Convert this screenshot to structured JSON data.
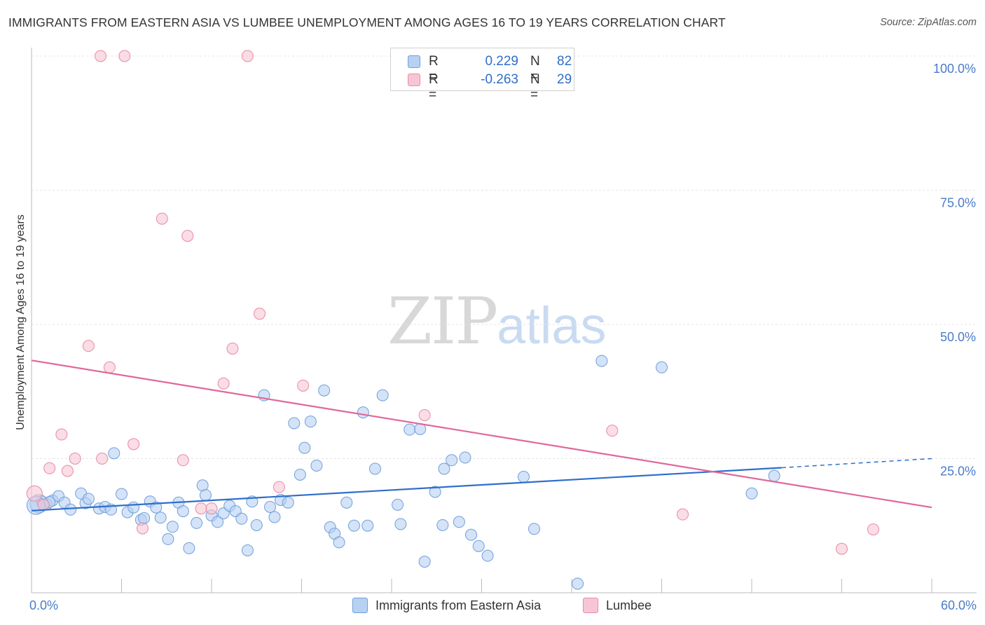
{
  "header": {
    "title": "IMMIGRANTS FROM EASTERN ASIA VS LUMBEE UNEMPLOYMENT AMONG AGES 16 TO 19 YEARS CORRELATION CHART",
    "source": "Source: ZipAtlas.com"
  },
  "watermark": {
    "zip": "ZIP",
    "atlas": "atlas"
  },
  "legend_top": [
    {
      "r_label": "R =",
      "r_value": "0.229",
      "n_label": "N =",
      "n_value": "82"
    },
    {
      "r_label": "R =",
      "r_value": "-0.263",
      "n_label": "N =",
      "n_value": "29"
    }
  ],
  "legend_bottom": [
    {
      "label": "Immigrants from Eastern Asia"
    },
    {
      "label": "Lumbee"
    }
  ],
  "chart_data": {
    "type": "scatter",
    "title": "IMMIGRANTS FROM EASTERN ASIA VS LUMBEE UNEMPLOYMENT AMONG AGES 16 TO 19 YEARS CORRELATION CHART",
    "xlabel": "",
    "ylabel": "Unemployment Among Ages 16 to 19 years",
    "xlim": [
      0,
      60
    ],
    "ylim": [
      0,
      100
    ],
    "x_tick_labels": [
      "0.0%",
      "60.0%"
    ],
    "y_tick_labels": [
      "100.0%",
      "75.0%",
      "50.0%",
      "25.0%"
    ],
    "y_ticks": [
      100,
      75,
      50,
      25
    ],
    "grid": true,
    "legend_placement": "top-center",
    "colors": {
      "blue_fill": "#b7d1f2",
      "blue_stroke": "#6f9fdc",
      "blue_line": "#2f6fca",
      "pink_fill": "#f7c6d4",
      "pink_stroke": "#e88aa6",
      "pink_line": "#e0679a",
      "axis_text": "#4a7cc8"
    },
    "series": [
      {
        "name": "Immigrants from Eastern Asia",
        "r": 0.229,
        "n": 82,
        "trend": {
          "x": [
            0,
            50
          ],
          "y": [
            15.3,
            23.3
          ],
          "dashed_to": [
            60,
            25.0
          ]
        },
        "points": [
          [
            0.5,
            16.6
          ],
          [
            0.7,
            17.0
          ],
          [
            1.0,
            16.5
          ],
          [
            1.4,
            17.2
          ],
          [
            1.8,
            18.0
          ],
          [
            2.2,
            16.8
          ],
          [
            2.6,
            15.5
          ],
          [
            3.3,
            18.5
          ],
          [
            3.6,
            16.7
          ],
          [
            3.8,
            17.5
          ],
          [
            4.5,
            15.7
          ],
          [
            4.9,
            16.0
          ],
          [
            5.3,
            15.5
          ],
          [
            5.5,
            26.0
          ],
          [
            6.0,
            18.4
          ],
          [
            6.4,
            15.0
          ],
          [
            6.8,
            15.9
          ],
          [
            7.3,
            13.6
          ],
          [
            7.5,
            13.9
          ],
          [
            7.9,
            17.0
          ],
          [
            8.3,
            15.9
          ],
          [
            8.6,
            14.0
          ],
          [
            9.1,
            10.0
          ],
          [
            9.4,
            12.3
          ],
          [
            9.8,
            16.8
          ],
          [
            10.1,
            15.2
          ],
          [
            10.5,
            8.3
          ],
          [
            11.0,
            13.0
          ],
          [
            11.4,
            20.0
          ],
          [
            11.6,
            18.2
          ],
          [
            12.0,
            14.4
          ],
          [
            12.4,
            13.2
          ],
          [
            12.8,
            14.8
          ],
          [
            13.2,
            16.2
          ],
          [
            13.6,
            15.2
          ],
          [
            14.0,
            13.8
          ],
          [
            14.4,
            7.9
          ],
          [
            14.7,
            17.0
          ],
          [
            15.0,
            12.6
          ],
          [
            15.5,
            36.8
          ],
          [
            15.9,
            16.0
          ],
          [
            16.2,
            14.1
          ],
          [
            16.6,
            17.3
          ],
          [
            17.1,
            16.8
          ],
          [
            17.5,
            31.6
          ],
          [
            17.9,
            22.0
          ],
          [
            18.2,
            27.0
          ],
          [
            18.6,
            31.9
          ],
          [
            19.0,
            23.7
          ],
          [
            19.5,
            37.7
          ],
          [
            19.9,
            12.2
          ],
          [
            20.2,
            11.0
          ],
          [
            20.5,
            9.4
          ],
          [
            21.0,
            16.8
          ],
          [
            21.5,
            12.5
          ],
          [
            22.1,
            33.6
          ],
          [
            22.4,
            12.5
          ],
          [
            22.9,
            23.1
          ],
          [
            23.4,
            36.8
          ],
          [
            24.4,
            16.4
          ],
          [
            24.6,
            12.8
          ],
          [
            25.2,
            30.4
          ],
          [
            25.9,
            30.5
          ],
          [
            26.2,
            5.8
          ],
          [
            26.9,
            18.8
          ],
          [
            27.4,
            12.6
          ],
          [
            27.5,
            23.1
          ],
          [
            28.0,
            24.7
          ],
          [
            28.5,
            13.2
          ],
          [
            28.9,
            25.2
          ],
          [
            29.3,
            10.8
          ],
          [
            29.8,
            8.7
          ],
          [
            30.4,
            6.9
          ],
          [
            32.8,
            21.6
          ],
          [
            33.5,
            11.9
          ],
          [
            36.4,
            1.7
          ],
          [
            38.0,
            43.2
          ],
          [
            42.0,
            42.0
          ],
          [
            48.0,
            18.5
          ],
          [
            49.5,
            21.8
          ],
          [
            0.3,
            16.3
          ],
          [
            1.2,
            16.9
          ]
        ]
      },
      {
        "name": "Lumbee",
        "r": -0.263,
        "n": 29,
        "trend": {
          "x": [
            0,
            60
          ],
          "y": [
            43.3,
            15.9
          ]
        },
        "points": [
          [
            0.2,
            18.5
          ],
          [
            1.2,
            23.2
          ],
          [
            2.0,
            29.5
          ],
          [
            2.4,
            22.7
          ],
          [
            2.9,
            25.0
          ],
          [
            3.8,
            46.0
          ],
          [
            4.6,
            100.0
          ],
          [
            4.7,
            25.0
          ],
          [
            5.2,
            42.0
          ],
          [
            6.2,
            100.0
          ],
          [
            6.8,
            27.7
          ],
          [
            7.4,
            12.0
          ],
          [
            8.7,
            69.7
          ],
          [
            10.1,
            24.7
          ],
          [
            10.4,
            66.5
          ],
          [
            11.3,
            15.7
          ],
          [
            12.0,
            15.7
          ],
          [
            12.8,
            39.0
          ],
          [
            13.4,
            45.5
          ],
          [
            14.4,
            100.0
          ],
          [
            15.2,
            52.0
          ],
          [
            16.5,
            19.7
          ],
          [
            18.1,
            38.6
          ],
          [
            26.2,
            33.1
          ],
          [
            38.7,
            30.2
          ],
          [
            43.4,
            14.6
          ],
          [
            54.0,
            8.2
          ],
          [
            56.1,
            11.8
          ],
          [
            0.8,
            16.4
          ]
        ]
      }
    ]
  }
}
